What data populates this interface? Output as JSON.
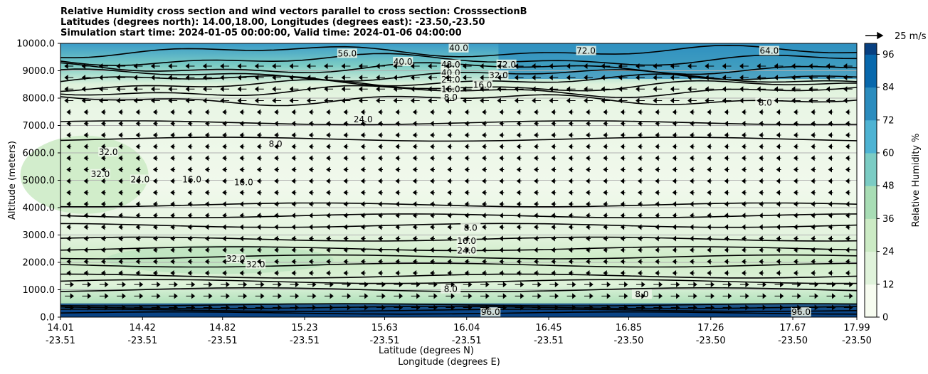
{
  "chart_data": {
    "type": "heatmap",
    "title_lines": [
      "Relative Humidity cross section and wind vectors parallel to cross section: CrosssectionB",
      "Latitudes (degrees north): 14.00,18.00, Longitudes (degrees east): -23.50,-23.50",
      "Simulation start time: 2024-01-05 00:00:00, Valid time: 2024-01-06 04:00:00"
    ],
    "xlabel_lat": "Latitude (degrees N)",
    "xlabel_lon": "Longitude (degrees E)",
    "ylabel": "Altitude (meters)",
    "colorbar_label": "Relative Humidity %",
    "colorbar_ticks": [
      "0",
      "12",
      "24",
      "36",
      "48",
      "60",
      "72",
      "84",
      "96"
    ],
    "colorbar_range": [
      0,
      100
    ],
    "quiver_key": "25 m/s",
    "ylim": [
      0,
      10000
    ],
    "y_ticks": [
      "0.0",
      "1000.0",
      "2000.0",
      "3000.0",
      "4000.0",
      "5000.0",
      "6000.0",
      "7000.0",
      "8000.0",
      "9000.0",
      "10000.0"
    ],
    "x_ticks": [
      {
        "lat": "14.01",
        "lon": "-23.51"
      },
      {
        "lat": "14.42",
        "lon": "-23.51"
      },
      {
        "lat": "14.82",
        "lon": "-23.51"
      },
      {
        "lat": "15.23",
        "lon": "-23.51"
      },
      {
        "lat": "15.63",
        "lon": "-23.51"
      },
      {
        "lat": "16.04",
        "lon": "-23.51"
      },
      {
        "lat": "16.45",
        "lon": "-23.51"
      },
      {
        "lat": "16.85",
        "lon": "-23.50"
      },
      {
        "lat": "17.26",
        "lon": "-23.50"
      },
      {
        "lat": "17.67",
        "lon": "-23.50"
      },
      {
        "lat": "17.99",
        "lon": "-23.50"
      }
    ],
    "contour_labels": [
      "8.0",
      "16.0",
      "24.0",
      "32.0",
      "16.0",
      "24.0",
      "32.0",
      "8.0",
      "8.0",
      "16.0",
      "24.0",
      "32.0",
      "32.0",
      "16.0",
      "8.0",
      "40.0",
      "48.0",
      "40.0",
      "32.0",
      "24.0",
      "16.0",
      "8.0",
      "56.0",
      "40.0",
      "72.0",
      "72.0",
      "64.0",
      "8.0",
      "96.0",
      "96.0"
    ],
    "grid": "horizontal",
    "colormap": [
      "#f7fcf0",
      "#e0f3db",
      "#ccebc5",
      "#a8ddb5",
      "#7bccc4",
      "#4eb3d3",
      "#2b8cbe",
      "#0868ac",
      "#084081"
    ]
  }
}
